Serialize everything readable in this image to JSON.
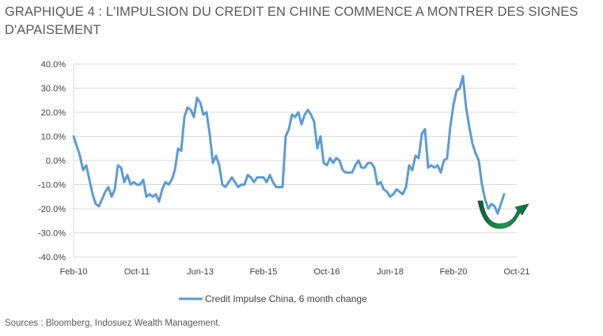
{
  "title": "GRAPHIQUE 4 : L'IMPULSION DU CREDIT EN CHINE COMMENCE A MONTRER DES SIGNES D'APAISEMENT",
  "source": "Sources : Bloomberg, Indosuez Wealth Management.",
  "chart_data": {
    "type": "line",
    "title": "",
    "xlabel": "",
    "ylabel": "",
    "ylim": [
      -40,
      40
    ],
    "xlim": [
      "2010-02",
      "2021-10"
    ],
    "y_ticks": [
      "40.0%",
      "30.0%",
      "20.0%",
      "10.0%",
      "0.0%",
      "-10.0%",
      "-20.0%",
      "-30.0%",
      "-40.0%"
    ],
    "x_ticks": [
      "Feb-10",
      "Oct-11",
      "Jun-13",
      "Feb-15",
      "Oct-16",
      "Jun-18",
      "Feb-20",
      "Oct-21"
    ],
    "grid": true,
    "legend_position": "bottom",
    "annotation": "green curved arrow near the late-2021 trough, pointing upward",
    "series": [
      {
        "name": "Credit Impulse China, 6 month change",
        "color": "#5b9bd5",
        "points": [
          [
            "2010-02",
            10
          ],
          [
            "2010-04",
            2
          ],
          [
            "2010-05",
            -4
          ],
          [
            "2010-06",
            -2
          ],
          [
            "2010-07",
            -8
          ],
          [
            "2010-08",
            -14
          ],
          [
            "2010-09",
            -18
          ],
          [
            "2010-10",
            -19
          ],
          [
            "2010-11",
            -16
          ],
          [
            "2010-12",
            -13
          ],
          [
            "2011-01",
            -11
          ],
          [
            "2011-02",
            -15
          ],
          [
            "2011-03",
            -12
          ],
          [
            "2011-04",
            -2
          ],
          [
            "2011-05",
            -3
          ],
          [
            "2011-06",
            -9
          ],
          [
            "2011-07",
            -6
          ],
          [
            "2011-08",
            -10
          ],
          [
            "2011-09",
            -9
          ],
          [
            "2011-10",
            -10
          ],
          [
            "2011-11",
            -10
          ],
          [
            "2011-12",
            -8
          ],
          [
            "2012-01",
            -15
          ],
          [
            "2012-02",
            -14
          ],
          [
            "2012-03",
            -15
          ],
          [
            "2012-04",
            -14
          ],
          [
            "2012-05",
            -17
          ],
          [
            "2012-06",
            -12
          ],
          [
            "2012-07",
            -9
          ],
          [
            "2012-08",
            -10
          ],
          [
            "2012-09",
            -8
          ],
          [
            "2012-10",
            -4
          ],
          [
            "2012-11",
            5
          ],
          [
            "2012-12",
            4
          ],
          [
            "2013-01",
            18
          ],
          [
            "2013-02",
            22
          ],
          [
            "2013-03",
            21
          ],
          [
            "2013-04",
            18
          ],
          [
            "2013-05",
            26
          ],
          [
            "2013-06",
            24
          ],
          [
            "2013-07",
            19
          ],
          [
            "2013-08",
            20
          ],
          [
            "2013-09",
            11
          ],
          [
            "2013-10",
            -1
          ],
          [
            "2013-11",
            2
          ],
          [
            "2013-12",
            -2
          ],
          [
            "2014-01",
            -10
          ],
          [
            "2014-02",
            -11
          ],
          [
            "2014-03",
            -9
          ],
          [
            "2014-04",
            -7
          ],
          [
            "2014-05",
            -9
          ],
          [
            "2014-06",
            -11
          ],
          [
            "2014-07",
            -10
          ],
          [
            "2014-08",
            -10
          ],
          [
            "2014-09",
            -6
          ],
          [
            "2014-10",
            -7
          ],
          [
            "2014-11",
            -9
          ],
          [
            "2014-12",
            -7
          ],
          [
            "2015-01",
            -7
          ],
          [
            "2015-02",
            -7
          ],
          [
            "2015-03",
            -9
          ],
          [
            "2015-04",
            -6
          ],
          [
            "2015-05",
            -9
          ],
          [
            "2015-06",
            -11
          ],
          [
            "2015-07",
            -11
          ],
          [
            "2015-08",
            -11
          ],
          [
            "2015-09",
            10
          ],
          [
            "2015-10",
            13
          ],
          [
            "2015-11",
            19
          ],
          [
            "2015-12",
            18
          ],
          [
            "2016-01",
            20
          ],
          [
            "2016-02",
            15
          ],
          [
            "2016-03",
            19
          ],
          [
            "2016-04",
            21
          ],
          [
            "2016-05",
            19
          ],
          [
            "2016-06",
            16
          ],
          [
            "2016-07",
            5
          ],
          [
            "2016-08",
            10
          ],
          [
            "2016-09",
            -1
          ],
          [
            "2016-10",
            -2
          ],
          [
            "2016-11",
            1
          ],
          [
            "2016-12",
            -1
          ],
          [
            "2017-01",
            1
          ],
          [
            "2017-02",
            0
          ],
          [
            "2017-03",
            -4
          ],
          [
            "2017-04",
            -5
          ],
          [
            "2017-05",
            -5
          ],
          [
            "2017-06",
            -5
          ],
          [
            "2017-07",
            -2
          ],
          [
            "2017-08",
            0
          ],
          [
            "2017-09",
            -3
          ],
          [
            "2017-10",
            -3
          ],
          [
            "2017-11",
            -1
          ],
          [
            "2017-12",
            -1
          ],
          [
            "2018-01",
            -3
          ],
          [
            "2018-02",
            -10
          ],
          [
            "2018-03",
            -9
          ],
          [
            "2018-04",
            -12
          ],
          [
            "2018-05",
            -13
          ],
          [
            "2018-06",
            -15
          ],
          [
            "2018-07",
            -14
          ],
          [
            "2018-08",
            -12
          ],
          [
            "2018-09",
            -13
          ],
          [
            "2018-10",
            -14
          ],
          [
            "2018-11",
            -11
          ],
          [
            "2018-12",
            -2
          ],
          [
            "2019-01",
            -4
          ],
          [
            "2019-02",
            2
          ],
          [
            "2019-03",
            1
          ],
          [
            "2019-04",
            11
          ],
          [
            "2019-05",
            13
          ],
          [
            "2019-06",
            -3
          ],
          [
            "2019-07",
            -2
          ],
          [
            "2019-08",
            -3
          ],
          [
            "2019-09",
            -2
          ],
          [
            "2019-10",
            -5
          ],
          [
            "2019-11",
            0
          ],
          [
            "2019-12",
            1
          ],
          [
            "2020-01",
            14
          ],
          [
            "2020-02",
            23
          ],
          [
            "2020-03",
            29
          ],
          [
            "2020-04",
            30
          ],
          [
            "2020-05",
            35
          ],
          [
            "2020-06",
            22
          ],
          [
            "2020-07",
            14
          ],
          [
            "2020-08",
            7
          ],
          [
            "2020-09",
            3
          ],
          [
            "2020-10",
            0
          ],
          [
            "2020-11",
            -10
          ],
          [
            "2020-12",
            -16
          ],
          [
            "2021-01",
            -20
          ],
          [
            "2021-02",
            -18
          ],
          [
            "2021-03",
            -19
          ],
          [
            "2021-04",
            -22
          ],
          [
            "2021-05",
            -18
          ],
          [
            "2021-06",
            -14
          ]
        ]
      }
    ]
  }
}
